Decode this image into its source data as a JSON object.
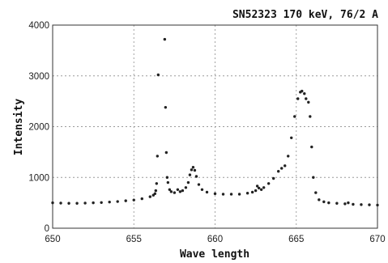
{
  "chart_data": {
    "type": "scatter",
    "title": "SN52323  170 keV, 76/2 A",
    "xlabel": "Wave length",
    "ylabel": "Intensity",
    "xlim": [
      650,
      670
    ],
    "ylim": [
      0,
      4000
    ],
    "xticks": [
      "650",
      "655",
      "660",
      "665",
      "670"
    ],
    "yticks": [
      "0",
      "1000",
      "2000",
      "3000",
      "4000"
    ],
    "grid": true,
    "legend": "none",
    "marker_color": "#222222",
    "series": [
      {
        "points": [
          [
            650.0,
            500
          ],
          [
            650.5,
            495
          ],
          [
            651.0,
            490
          ],
          [
            651.5,
            490
          ],
          [
            652.0,
            495
          ],
          [
            652.5,
            500
          ],
          [
            653.0,
            505
          ],
          [
            653.5,
            515
          ],
          [
            654.0,
            525
          ],
          [
            654.5,
            540
          ],
          [
            655.0,
            555
          ],
          [
            655.5,
            580
          ],
          [
            656.0,
            620
          ],
          [
            656.2,
            650
          ],
          [
            656.3,
            680
          ],
          [
            656.35,
            740
          ],
          [
            656.4,
            880
          ],
          [
            656.45,
            1420
          ],
          [
            656.5,
            3020
          ],
          [
            656.9,
            3720
          ],
          [
            656.95,
            2380
          ],
          [
            657.0,
            1490
          ],
          [
            657.05,
            1000
          ],
          [
            657.1,
            900
          ],
          [
            657.2,
            760
          ],
          [
            657.3,
            720
          ],
          [
            657.5,
            700
          ],
          [
            657.7,
            760
          ],
          [
            657.85,
            720
          ],
          [
            658.0,
            740
          ],
          [
            658.2,
            800
          ],
          [
            658.35,
            900
          ],
          [
            658.45,
            1050
          ],
          [
            658.55,
            1150
          ],
          [
            658.65,
            1200
          ],
          [
            658.75,
            1140
          ],
          [
            658.85,
            1020
          ],
          [
            659.0,
            860
          ],
          [
            659.2,
            760
          ],
          [
            659.5,
            710
          ],
          [
            660.0,
            680
          ],
          [
            660.5,
            670
          ],
          [
            661.0,
            670
          ],
          [
            661.5,
            670
          ],
          [
            662.0,
            690
          ],
          [
            662.3,
            710
          ],
          [
            662.5,
            740
          ],
          [
            662.6,
            830
          ],
          [
            662.7,
            790
          ],
          [
            662.85,
            760
          ],
          [
            663.0,
            800
          ],
          [
            663.3,
            880
          ],
          [
            663.6,
            980
          ],
          [
            663.9,
            1120
          ],
          [
            664.1,
            1180
          ],
          [
            664.3,
            1230
          ],
          [
            664.5,
            1420
          ],
          [
            664.7,
            1780
          ],
          [
            664.9,
            2200
          ],
          [
            665.1,
            2550
          ],
          [
            665.25,
            2680
          ],
          [
            665.35,
            2700
          ],
          [
            665.5,
            2650
          ],
          [
            665.6,
            2550
          ],
          [
            665.75,
            2480
          ],
          [
            665.85,
            2200
          ],
          [
            665.95,
            1600
          ],
          [
            666.05,
            1000
          ],
          [
            666.2,
            700
          ],
          [
            666.4,
            560
          ],
          [
            666.7,
            520
          ],
          [
            667.0,
            500
          ],
          [
            667.5,
            490
          ],
          [
            668.0,
            480
          ],
          [
            668.2,
            500
          ],
          [
            668.5,
            470
          ],
          [
            669.0,
            465
          ],
          [
            669.5,
            460
          ],
          [
            670.0,
            455
          ]
        ]
      }
    ]
  }
}
